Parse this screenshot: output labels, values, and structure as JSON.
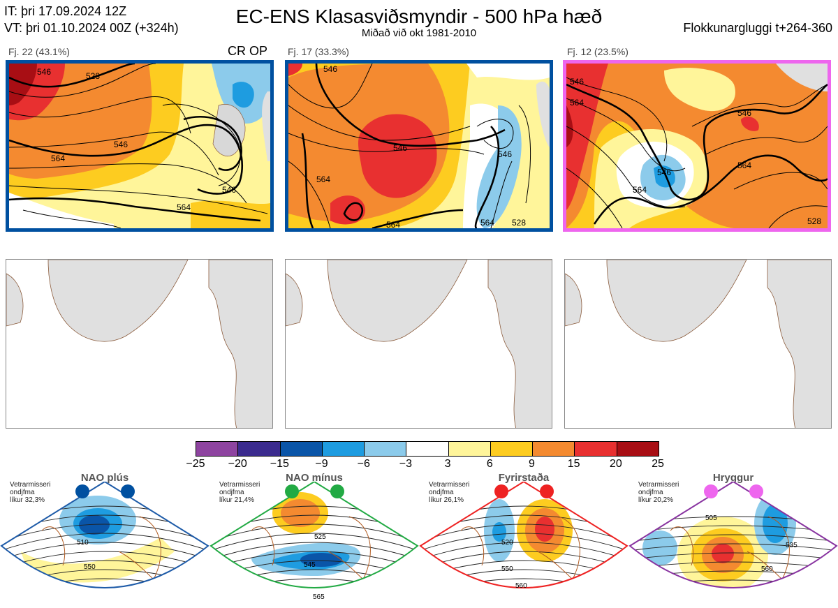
{
  "header": {
    "init_time": "IT: þri 17.09.2024 12Z",
    "valid_time": "VT: þri 01.10.2024 00Z  (+324h)",
    "title": "EC-ENS Klasasviðsmyndir - 500 hPa hæð",
    "subtitle": "Miðað við okt 1981-2010",
    "window": "Flokkunargluggi t+264-360"
  },
  "clusters": [
    {
      "title": "Fj. 22 (43.1%)",
      "badge": "CR OP",
      "border": "#0050a0",
      "contours": [
        "546",
        "564",
        "528",
        "546",
        "564",
        "546"
      ]
    },
    {
      "title": "Fj. 17 (33.3%)",
      "badge": "",
      "border": "#0050a0",
      "contours": [
        "546",
        "546",
        "564",
        "564",
        "564",
        "546",
        "528"
      ]
    },
    {
      "title": "Fj. 12 (23.5%)",
      "badge": "",
      "border": "#ee66ee",
      "contours": [
        "546",
        "564",
        "546",
        "564",
        "564",
        "546",
        "528"
      ]
    }
  ],
  "colorbar": {
    "ticks": [
      "−25",
      "−20",
      "−15",
      "−9",
      "−6",
      "−3",
      "3",
      "6",
      "9",
      "15",
      "20",
      "25"
    ],
    "colors": [
      "#8e44a0",
      "#3b2b8e",
      "#0a55a8",
      "#1e9ce0",
      "#8ccbeb",
      "#ffffff",
      "#fff59a",
      "#fdcc20",
      "#f48a30",
      "#e83030",
      "#a80e14"
    ]
  },
  "regimes": [
    {
      "name": "NAO plús",
      "label1": "Vetrarmisseri",
      "label2": "ondjfma",
      "label3": "líkur 32,3%",
      "dot": "#0050a0",
      "frame": "#1e5ba8",
      "contours": [
        "510",
        "550"
      ]
    },
    {
      "name": "NAO mínus",
      "label1": "Vetrarmisseri",
      "label2": "ondjfma",
      "label3": "líkur 21,4%",
      "dot": "#22aa44",
      "frame": "#22aa44",
      "contours": [
        "525",
        "545",
        "565"
      ]
    },
    {
      "name": "Fyrirstaða",
      "label1": "Vetrarmisseri",
      "label2": "ondjfma",
      "label3": "líkur 26,1%",
      "dot": "#ee2222",
      "frame": "#ee2222",
      "contours": [
        "520",
        "550",
        "560"
      ]
    },
    {
      "name": "Hryggur",
      "label1": "Vetrarmisseri",
      "label2": "ondjfma",
      "label3": "líkur 20,2%",
      "dot": "#ee66ee",
      "frame": "#8833a0",
      "contours": [
        "505",
        "535",
        "560"
      ]
    }
  ]
}
